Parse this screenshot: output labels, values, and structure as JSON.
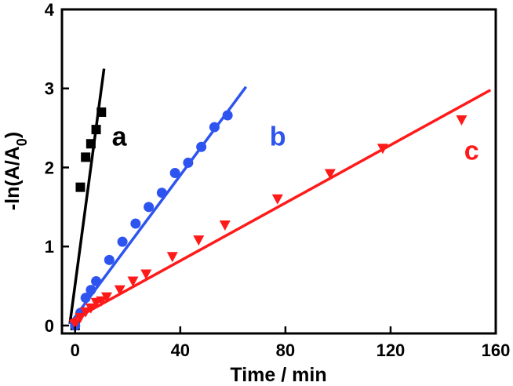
{
  "chart_data": {
    "type": "scatter",
    "xlabel": "Time / min",
    "ylabel": {
      "prefix": "-ln(A/A",
      "sub": "0",
      "suffix": ")"
    },
    "xlim": [
      -5,
      160
    ],
    "ylim": [
      -0.1,
      4
    ],
    "xticks": [
      "0",
      "40",
      "80",
      "120",
      "160"
    ],
    "yticks": [
      "0",
      "1",
      "2",
      "3",
      "4"
    ],
    "series": [
      {
        "name": "a",
        "color": "#000000",
        "marker": "square",
        "points": [
          [
            0,
            0
          ],
          [
            2,
            1.75
          ],
          [
            4,
            2.13
          ],
          [
            6,
            2.3
          ],
          [
            8,
            2.48
          ],
          [
            10,
            2.7
          ]
        ],
        "fit": [
          [
            -2,
            0.02
          ],
          [
            11,
            3.25
          ]
        ]
      },
      {
        "name": "b",
        "color": "#2e54f0",
        "marker": "circle",
        "points": [
          [
            0,
            0
          ],
          [
            2,
            0.16
          ],
          [
            4,
            0.35
          ],
          [
            6,
            0.45
          ],
          [
            8,
            0.56
          ],
          [
            13,
            0.83
          ],
          [
            18,
            1.06
          ],
          [
            23,
            1.29
          ],
          [
            28,
            1.5
          ],
          [
            33,
            1.68
          ],
          [
            38,
            1.93
          ],
          [
            43,
            2.06
          ],
          [
            48,
            2.26
          ],
          [
            53,
            2.51
          ],
          [
            58,
            2.66
          ]
        ],
        "fit": [
          [
            -2,
            0.02
          ],
          [
            65,
            3.02
          ]
        ]
      },
      {
        "name": "c",
        "color": "#ff1a1a",
        "marker": "triangle-down",
        "points": [
          [
            0,
            0.02
          ],
          [
            2,
            0.1
          ],
          [
            4,
            0.17
          ],
          [
            6,
            0.22
          ],
          [
            8,
            0.29
          ],
          [
            10,
            0.31
          ],
          [
            12,
            0.36
          ],
          [
            17,
            0.45
          ],
          [
            22,
            0.56
          ],
          [
            27,
            0.65
          ],
          [
            37,
            0.87
          ],
          [
            47,
            1.08
          ],
          [
            57,
            1.27
          ],
          [
            77,
            1.6
          ],
          [
            97,
            1.92
          ],
          [
            117,
            2.24
          ],
          [
            147,
            2.6
          ]
        ],
        "fit": [
          [
            -2,
            0.05
          ],
          [
            158,
            2.98
          ]
        ]
      }
    ]
  }
}
